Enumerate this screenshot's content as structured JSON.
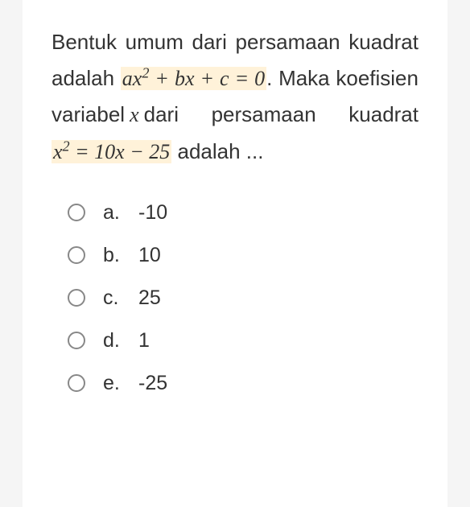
{
  "question": {
    "text_parts": {
      "p1": "Bentuk umum dari persamaan kuadrat adalah ",
      "formula1": "ax² + bx + c = 0",
      "p2": ". Maka koefisien variabel ",
      "varx": "x",
      "p3": "dari persamaan kuadrat ",
      "formula2": "x² = 10x − 25",
      "p4": " adalah ..."
    }
  },
  "options": [
    {
      "label": "a.",
      "value": "-10"
    },
    {
      "label": "b.",
      "value": "10"
    },
    {
      "label": "c.",
      "value": "25"
    },
    {
      "label": "d.",
      "value": "1"
    },
    {
      "label": "e.",
      "value": "-25"
    }
  ],
  "colors": {
    "background": "#f5f5f5",
    "card": "#ffffff",
    "text": "#333333",
    "highlight": "#fff2d9",
    "radio_border": "#888888"
  }
}
